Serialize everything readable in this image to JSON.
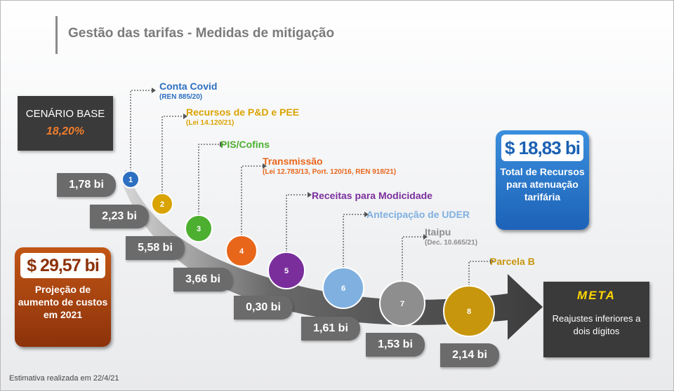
{
  "header": {
    "title": "Gestão das tarifas - Medidas de mitigação"
  },
  "base": {
    "label": "CENÁRIO BASE",
    "value": "18,20%"
  },
  "steps": [
    {
      "number": "1",
      "value": "1,78 bi",
      "label": "Conta Covid",
      "sub": "(REN 885/20)",
      "color": "#2d6fc1"
    },
    {
      "number": "2",
      "value": "2,23 bi",
      "label": "Recursos de P&D e PEE",
      "sub": "(Lei 14.120/21)",
      "color": "#d9a300"
    },
    {
      "number": "3",
      "value": "5,58 bi",
      "label": "PIS/Cofins",
      "sub": "",
      "color": "#4caf2f"
    },
    {
      "number": "4",
      "value": "3,66 bi",
      "label": "Transmissão",
      "sub": "(Lei 12.783/13, Port. 120/16, REN 918/21)",
      "color": "#e8661a"
    },
    {
      "number": "5",
      "value": "0,30 bi",
      "label": "Receitas para Modicidade",
      "sub": "",
      "color": "#7a2e9c"
    },
    {
      "number": "6",
      "value": "1,61 bi",
      "label": "Antecipação de UDER",
      "sub": "",
      "color": "#7fb0e0"
    },
    {
      "number": "7",
      "value": "1,53 bi",
      "label": "Itaipu",
      "sub": "(Dec. 10.665/21)",
      "color": "#8e8e8e"
    },
    {
      "number": "8",
      "value": "2,14 bi",
      "label": "Parcela B",
      "sub": "",
      "color": "#c8960c"
    }
  ],
  "total": {
    "value": "$ 18,83 bi",
    "text": "Total de Recursos para atenuação tarifária"
  },
  "projection": {
    "value": "$ 29,57 bi",
    "text": "Projeção de aumento de custos em 2021"
  },
  "meta": {
    "title": "META",
    "text": "Reajustes inferiores a dois dígitos"
  },
  "footnote": "Estimativa realizada em 22/4/21"
}
